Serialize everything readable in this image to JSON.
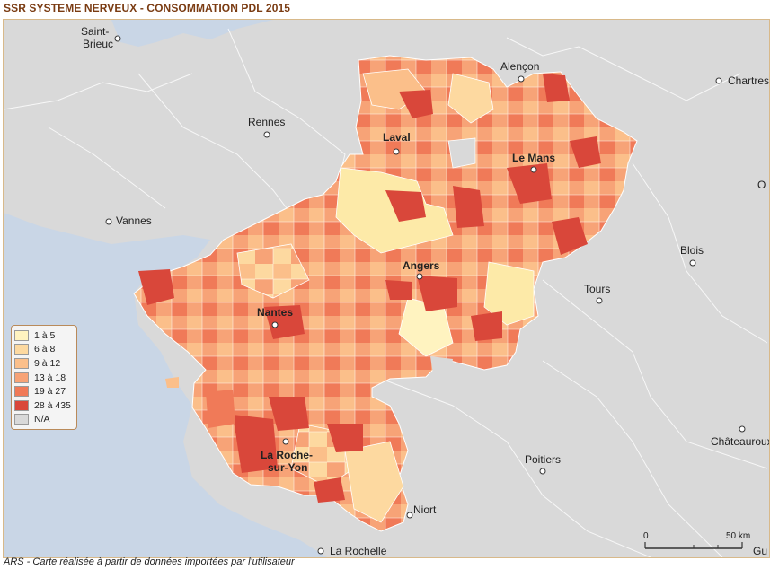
{
  "title": "SSR SYSTEME NERVEUX - CONSOMMATION PDL 2015",
  "source_note": "ARS - Carte réalisée à partir de données importées par l'utilisateur",
  "legend": {
    "items": [
      {
        "label": "1 à 5",
        "color": "#fff3c0"
      },
      {
        "label": "6 à 8",
        "color": "#fdd9a0"
      },
      {
        "label": "9 à 12",
        "color": "#fbbf8a"
      },
      {
        "label": "13 à 18",
        "color": "#f7a377"
      },
      {
        "label": "19 à 27",
        "color": "#f07a58"
      },
      {
        "label": "28 à 435",
        "color": "#d9473a"
      },
      {
        "label": "N/A",
        "color": "#d9d9d9"
      }
    ]
  },
  "scale": {
    "start": "0",
    "end": "50 km"
  },
  "cities": [
    {
      "name": "Saint-",
      "name2": "Brieuc",
      "highlight": false
    },
    {
      "name": "Rennes",
      "highlight": false
    },
    {
      "name": "Vannes",
      "highlight": false
    },
    {
      "name": "Laval",
      "highlight": true
    },
    {
      "name": "Alençon",
      "highlight": false
    },
    {
      "name": "Le Mans",
      "highlight": true
    },
    {
      "name": "Chartres",
      "highlight": false
    },
    {
      "name": "Angers",
      "highlight": true
    },
    {
      "name": "Blois",
      "highlight": false
    },
    {
      "name": "Tours",
      "highlight": false
    },
    {
      "name": "Nantes",
      "highlight": true
    },
    {
      "name": "La Roche-",
      "name2": "sur-Yon",
      "highlight": true
    },
    {
      "name": "Poitiers",
      "highlight": false
    },
    {
      "name": "Châteauroux",
      "highlight": false
    },
    {
      "name": "Niort",
      "highlight": false
    },
    {
      "name": "La Rochelle",
      "highlight": false
    },
    {
      "name": "O",
      "highlight": false
    },
    {
      "name": "Gu",
      "highlight": false
    }
  ],
  "colors": {
    "sea": "#c9d6e6",
    "land": "#d9d9d9",
    "borders": "#ffffff",
    "frame": "#d8b98a"
  }
}
